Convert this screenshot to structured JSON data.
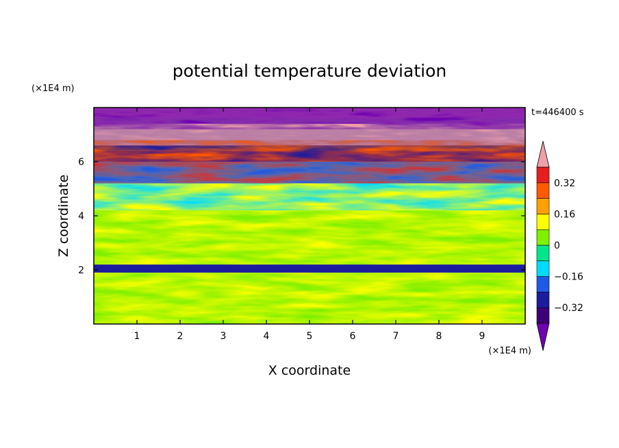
{
  "chart_data": {
    "type": "heatmap",
    "title": "potential temperature deviation",
    "xlabel": "X coordinate",
    "ylabel": "Z coordinate",
    "x_unit": "(×1E4 m)",
    "y_unit": "(×1E4 m)",
    "time_label": "t=446400  s",
    "xlim": [
      0,
      10
    ],
    "ylim": [
      0,
      8
    ],
    "x_ticks": [
      1,
      2,
      3,
      4,
      5,
      6,
      7,
      8,
      9
    ],
    "y_ticks": [
      2,
      4,
      6
    ],
    "colorbar": {
      "levels": [
        -0.4,
        -0.32,
        -0.24,
        -0.16,
        -0.08,
        0,
        0.08,
        0.16,
        0.24,
        0.32,
        0.4
      ],
      "tick_labels": [
        "0.32",
        "0.16",
        "0",
        "−0.16",
        "−0.32"
      ],
      "tick_values": [
        0.32,
        0.16,
        0,
        -0.16,
        -0.32
      ],
      "colors": [
        "#3e0078",
        "#1c1c9e",
        "#1f5ae6",
        "#00dcff",
        "#00e68c",
        "#7ef000",
        "#ffff00",
        "#ffa000",
        "#ff5a00",
        "#e61e1e"
      ],
      "under_color": "#7000b0",
      "over_color": "#f0a0a8"
    },
    "bands": [
      {
        "z_bottom": 0.0,
        "z_top": 1.9,
        "value": 0.0
      },
      {
        "z_bottom": 1.9,
        "z_top": 2.2,
        "value": -0.3
      },
      {
        "z_bottom": 2.2,
        "z_top": 4.2,
        "value": 0.0
      },
      {
        "z_bottom": 4.2,
        "z_top": 5.2,
        "value": 0.1
      },
      {
        "z_bottom": 5.2,
        "z_top": 6.0,
        "value": -0.2
      },
      {
        "z_bottom": 6.0,
        "z_top": 6.8,
        "value": 0.3
      },
      {
        "z_bottom": 6.8,
        "z_top": 7.4,
        "value": 0.45
      },
      {
        "z_bottom": 7.4,
        "z_top": 8.0,
        "value": -0.45
      }
    ]
  }
}
